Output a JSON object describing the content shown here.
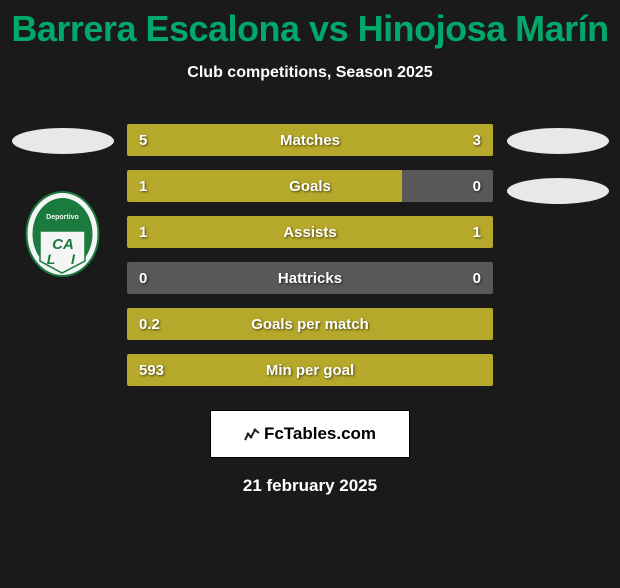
{
  "title": "Barrera Escalona vs Hinojosa Marín",
  "title_color": "#00a86b",
  "subtitle": "Club competitions, Season 2025",
  "background_color": "#1a1a1a",
  "bar_color": "#b5a82a",
  "empty_bar_color": "#585858",
  "stats": [
    {
      "label": "Matches",
      "left_val": "5",
      "right_val": "3",
      "left_width": 50,
      "right_width": 50,
      "empty": false
    },
    {
      "label": "Goals",
      "left_val": "1",
      "right_val": "0",
      "left_width": 75,
      "right_width": 0,
      "empty": false,
      "right_empty": true
    },
    {
      "label": "Assists",
      "left_val": "1",
      "right_val": "1",
      "left_width": 50,
      "right_width": 50,
      "empty": false
    },
    {
      "label": "Hattricks",
      "left_val": "0",
      "right_val": "0",
      "left_width": 0,
      "right_width": 0,
      "empty": true
    },
    {
      "label": "Goals per match",
      "left_val": "0.2",
      "right_val": "",
      "left_width": 100,
      "right_width": 0,
      "empty": false
    },
    {
      "label": "Min per goal",
      "left_val": "593",
      "right_val": "",
      "left_width": 100,
      "right_width": 0,
      "empty": false
    }
  ],
  "brand": "FcTables.com",
  "date": "21 february 2025",
  "stat_count": 6
}
